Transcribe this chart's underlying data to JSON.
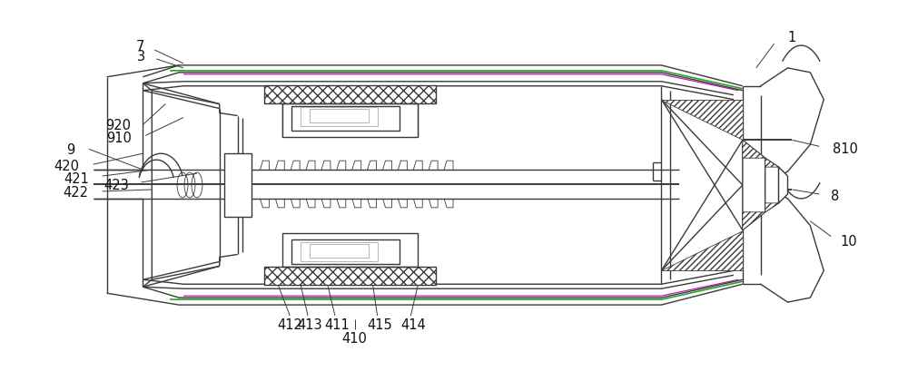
{
  "bg_color": "#ffffff",
  "line_color": "#3a3a3a",
  "lw": 1.0,
  "tlw": 0.6,
  "thkw": 1.4,
  "green_color": "#22aa22",
  "magenta_color": "#bb00bb",
  "gray_color": "#aaaaaa",
  "label_fontsize": 10.5,
  "label_color": "#111111",
  "figsize": [
    10.0,
    4.1
  ],
  "dpi": 100
}
